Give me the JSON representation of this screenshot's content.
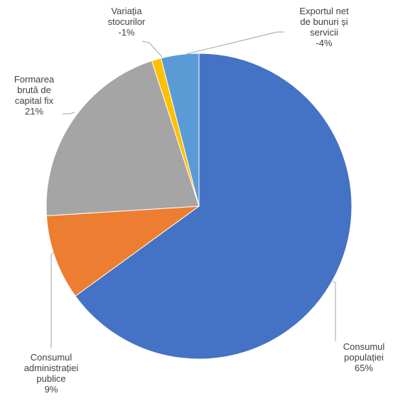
{
  "chart_data": {
    "type": "pie",
    "categories": [
      "Consumul\npopulației",
      "Consumul\nadministrației\npublice",
      "Formarea\nbrută de\ncapital fix",
      "Variația\nstocurilor",
      "Exportul net\nde bunuri și\nservicii"
    ],
    "values": [
      65,
      9,
      21,
      -1,
      -4
    ],
    "value_labels": [
      "65%",
      "9%",
      "21%",
      "-1%",
      "-4%"
    ],
    "colors": [
      "#4472c4",
      "#ed7d31",
      "#a5a5a5",
      "#ffc000",
      "#5b9bd5"
    ]
  }
}
